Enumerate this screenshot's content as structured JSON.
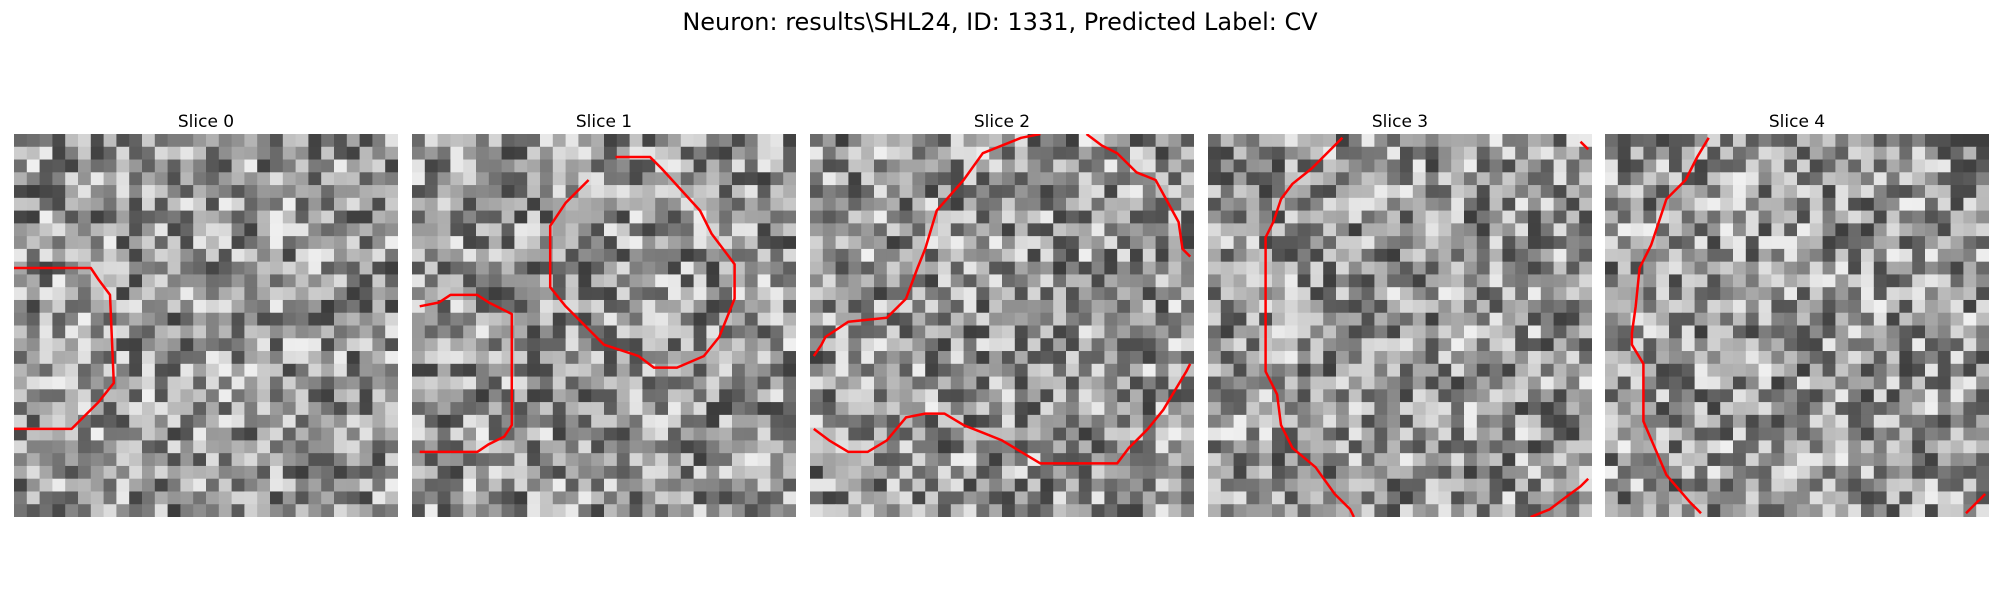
{
  "figure": {
    "title": "Neuron: results\\SHL24, ID: 1331, Predicted Label: CV",
    "contour_color": "#ff0000",
    "colormap": "gray"
  },
  "panels": [
    {
      "title": "Slice 0",
      "seed": 11,
      "contours": [
        [
          [
            0.0,
            0.35
          ],
          [
            0.2,
            0.35
          ],
          [
            0.22,
            0.38
          ],
          [
            0.25,
            0.42
          ],
          [
            0.26,
            0.65
          ],
          [
            0.22,
            0.7
          ],
          [
            0.15,
            0.77
          ],
          [
            0.0,
            0.77
          ]
        ]
      ]
    },
    {
      "title": "Slice 1",
      "seed": 29,
      "contours": [
        [
          [
            0.02,
            0.45
          ],
          [
            0.07,
            0.44
          ],
          [
            0.1,
            0.42
          ],
          [
            0.17,
            0.42
          ],
          [
            0.2,
            0.44
          ],
          [
            0.26,
            0.47
          ],
          [
            0.26,
            0.76
          ],
          [
            0.24,
            0.79
          ],
          [
            0.2,
            0.81
          ],
          [
            0.17,
            0.83
          ],
          [
            0.02,
            0.83
          ]
        ],
        [
          [
            0.53,
            0.06
          ],
          [
            0.62,
            0.06
          ],
          [
            0.65,
            0.09
          ],
          [
            0.75,
            0.2
          ],
          [
            0.78,
            0.26
          ],
          [
            0.84,
            0.34
          ],
          [
            0.84,
            0.43
          ],
          [
            0.8,
            0.53
          ],
          [
            0.76,
            0.58
          ],
          [
            0.69,
            0.61
          ],
          [
            0.63,
            0.61
          ],
          [
            0.59,
            0.58
          ],
          [
            0.5,
            0.55
          ],
          [
            0.4,
            0.45
          ],
          [
            0.36,
            0.4
          ],
          [
            0.36,
            0.24
          ],
          [
            0.4,
            0.18
          ],
          [
            0.46,
            0.12
          ]
        ]
      ]
    },
    {
      "title": "Slice 2",
      "seed": 47,
      "contours": [
        [
          [
            0.01,
            0.58
          ],
          [
            0.03,
            0.55
          ],
          [
            0.04,
            0.53
          ],
          [
            0.1,
            0.49
          ],
          [
            0.2,
            0.48
          ],
          [
            0.25,
            0.43
          ],
          [
            0.28,
            0.35
          ],
          [
            0.3,
            0.3
          ],
          [
            0.33,
            0.2
          ],
          [
            0.4,
            0.12
          ],
          [
            0.45,
            0.05
          ],
          [
            0.55,
            0.01
          ],
          [
            0.6,
            0.0
          ]
        ],
        [
          [
            0.72,
            0.0
          ],
          [
            0.76,
            0.03
          ],
          [
            0.8,
            0.05
          ],
          [
            0.85,
            0.1
          ],
          [
            0.9,
            0.12
          ],
          [
            0.96,
            0.23
          ],
          [
            0.97,
            0.3
          ],
          [
            0.99,
            0.32
          ]
        ],
        [
          [
            0.01,
            0.77
          ],
          [
            0.05,
            0.8
          ],
          [
            0.1,
            0.83
          ],
          [
            0.15,
            0.83
          ],
          [
            0.2,
            0.8
          ],
          [
            0.25,
            0.74
          ],
          [
            0.3,
            0.73
          ],
          [
            0.35,
            0.73
          ],
          [
            0.4,
            0.76
          ],
          [
            0.45,
            0.78
          ],
          [
            0.5,
            0.8
          ],
          [
            0.55,
            0.83
          ],
          [
            0.6,
            0.86
          ],
          [
            0.7,
            0.86
          ],
          [
            0.8,
            0.86
          ],
          [
            0.83,
            0.82
          ],
          [
            0.88,
            0.77
          ],
          [
            0.92,
            0.72
          ],
          [
            0.95,
            0.67
          ],
          [
            0.98,
            0.62
          ],
          [
            0.99,
            0.6
          ]
        ]
      ]
    },
    {
      "title": "Slice 3",
      "seed": 71,
      "contours": [
        [
          [
            0.35,
            0.01
          ],
          [
            0.27,
            0.09
          ],
          [
            0.22,
            0.13
          ],
          [
            0.19,
            0.17
          ],
          [
            0.17,
            0.23
          ],
          [
            0.15,
            0.27
          ],
          [
            0.15,
            0.62
          ],
          [
            0.18,
            0.68
          ],
          [
            0.19,
            0.76
          ],
          [
            0.22,
            0.82
          ],
          [
            0.28,
            0.87
          ],
          [
            0.33,
            0.94
          ],
          [
            0.37,
            0.98
          ],
          [
            0.38,
            1.0
          ]
        ],
        [
          [
            0.97,
            0.02
          ],
          [
            0.99,
            0.04
          ]
        ],
        [
          [
            0.84,
            1.0
          ],
          [
            0.89,
            0.98
          ],
          [
            0.93,
            0.95
          ],
          [
            0.97,
            0.92
          ],
          [
            0.99,
            0.9
          ]
        ]
      ]
    },
    {
      "title": "Slice 4",
      "seed": 97,
      "contours": [
        [
          [
            0.27,
            0.01
          ],
          [
            0.24,
            0.06
          ],
          [
            0.21,
            0.12
          ],
          [
            0.16,
            0.17
          ],
          [
            0.14,
            0.23
          ],
          [
            0.12,
            0.29
          ],
          [
            0.09,
            0.35
          ],
          [
            0.08,
            0.45
          ],
          [
            0.07,
            0.52
          ],
          [
            0.07,
            0.55
          ],
          [
            0.1,
            0.6
          ],
          [
            0.1,
            0.75
          ],
          [
            0.16,
            0.89
          ],
          [
            0.22,
            0.96
          ],
          [
            0.25,
            0.99
          ]
        ],
        [
          [
            0.94,
            0.99
          ],
          [
            0.99,
            0.94
          ]
        ]
      ]
    }
  ]
}
